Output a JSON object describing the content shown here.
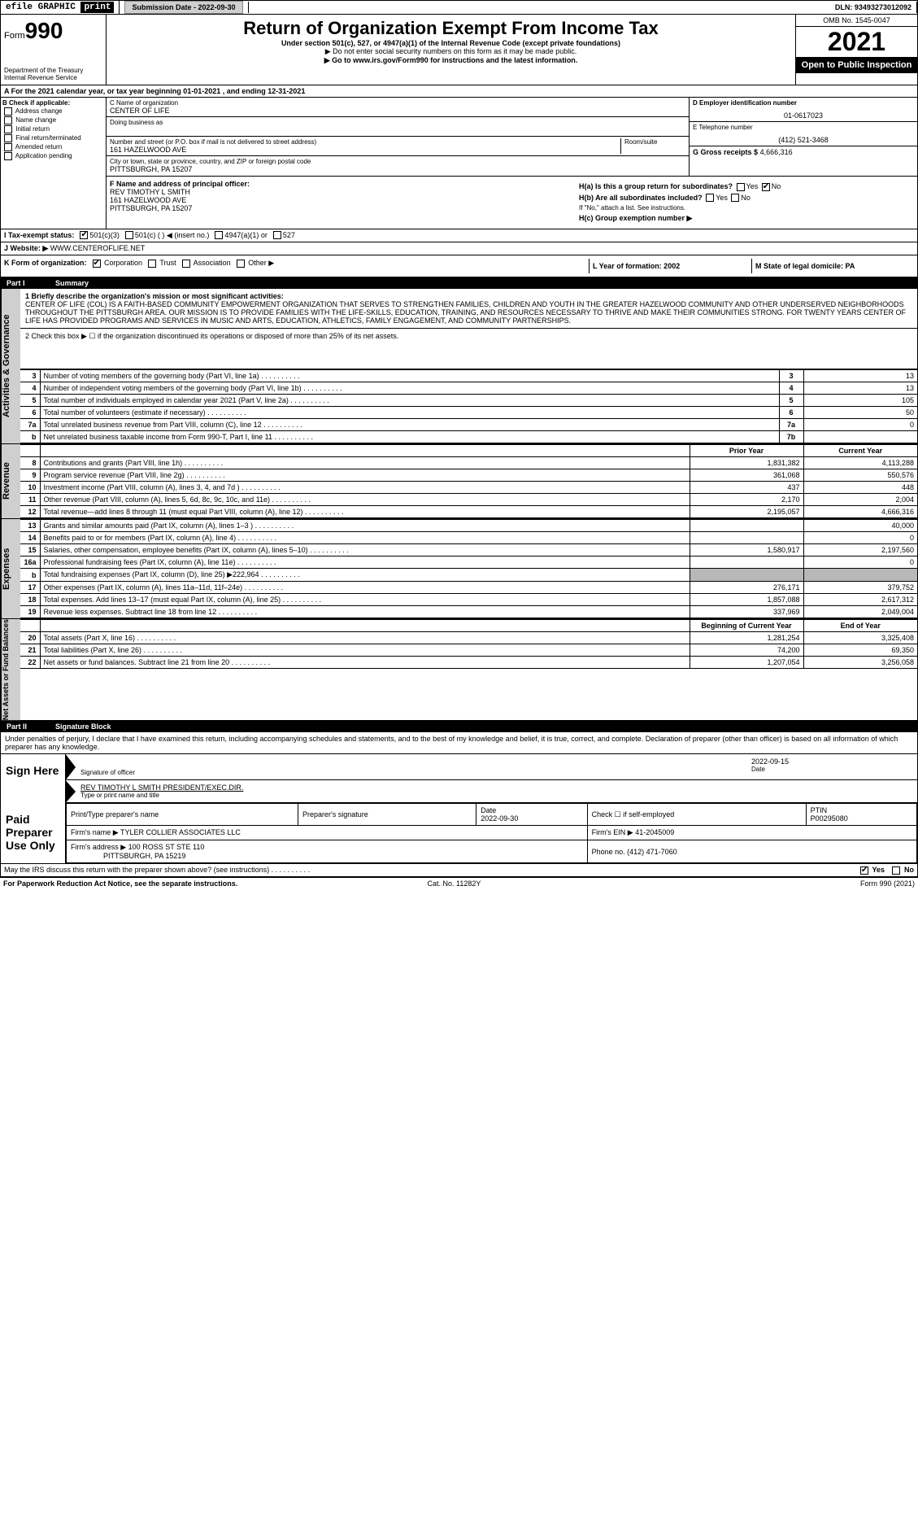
{
  "top": {
    "efile": "efile GRAPHIC",
    "print": "print",
    "sub_label": "Submission Date - 2022-09-30",
    "dln": "DLN: 93493273012092"
  },
  "header": {
    "form": "Form",
    "num": "990",
    "dept": "Department of the Treasury",
    "irs": "Internal Revenue Service",
    "title": "Return of Organization Exempt From Income Tax",
    "sub": "Under section 501(c), 527, or 4947(a)(1) of the Internal Revenue Code (except private foundations)",
    "sub2": "▶ Do not enter social security numbers on this form as it may be made public.",
    "go": "▶ Go to www.irs.gov/Form990 for instructions and the latest information.",
    "omb": "OMB No. 1545-0047",
    "year": "2021",
    "open": "Open to Public Inspection"
  },
  "a": {
    "text": "A For the 2021 calendar year, or tax year beginning 01-01-2021   , and ending 12-31-2021"
  },
  "b": {
    "title": "B Check if applicable:",
    "items": [
      "Address change",
      "Name change",
      "Initial return",
      "Final return/terminated",
      "Amended return",
      "Application pending"
    ]
  },
  "c": {
    "name_label": "C Name of organization",
    "name": "CENTER OF LIFE",
    "dba_label": "Doing business as",
    "dba": "",
    "addr_label": "Number and street (or P.O. box if mail is not delivered to street address)",
    "room_label": "Room/suite",
    "addr": "161 HAZELWOOD AVE",
    "city_label": "City or town, state or province, country, and ZIP or foreign postal code",
    "city": "PITTSBURGH, PA  15207"
  },
  "d": {
    "ein_label": "D Employer identification number",
    "ein": "01-0617023",
    "tel_label": "E Telephone number",
    "tel": "(412) 521-3468",
    "gross_label": "G Gross receipts $",
    "gross": "4,666,316"
  },
  "f": {
    "label": "F  Name and address of principal officer:",
    "name": "REV TIMOTHY L SMITH",
    "addr1": "161 HAZELWOOD AVE",
    "addr2": "PITTSBURGH, PA  15207"
  },
  "h": {
    "a": "H(a)  Is this a group return for subordinates?",
    "b": "H(b)  Are all subordinates included?",
    "b2": "If \"No,\" attach a list. See instructions.",
    "c": "H(c)  Group exemption number ▶",
    "yes": "Yes",
    "no": "No"
  },
  "i": {
    "label": "I   Tax-exempt status:",
    "opts": [
      "501(c)(3)",
      "501(c) (  ) ◀ (insert no.)",
      "4947(a)(1) or",
      "527"
    ]
  },
  "j": {
    "label": "J   Website: ▶",
    "val": "WWW.CENTEROFLIFE.NET"
  },
  "k": {
    "label": "K Form of organization:",
    "opts": [
      "Corporation",
      "Trust",
      "Association",
      "Other ▶"
    ],
    "l": "L Year of formation: 2002",
    "m": "M State of legal domicile: PA"
  },
  "part1": {
    "label": "Part I",
    "title": "Summary"
  },
  "summary": {
    "q1_label": "1   Briefly describe the organization's mission or most significant activities:",
    "q1": "CENTER OF LIFE (COL) IS A FAITH-BASED COMMUNITY EMPOWERMENT ORGANIZATION THAT SERVES TO STRENGTHEN FAMILIES, CHILDREN AND YOUTH IN THE GREATER HAZELWOOD COMMUNITY AND OTHER UNDERSERVED NEIGHBORHOODS THROUGHOUT THE PITTSBURGH AREA. OUR MISSION IS TO PROVIDE FAMILIES WITH THE LIFE-SKILLS, EDUCATION, TRAINING, AND RESOURCES NECESSARY TO THRIVE AND MAKE THEIR COMMUNITIES STRONG. FOR TWENTY YEARS CENTER OF LIFE HAS PROVIDED PROGRAMS AND SERVICES IN MUSIC AND ARTS, EDUCATION, ATHLETICS, FAMILY ENGAGEMENT, AND COMMUNITY PARTNERSHIPS.",
    "q2": "2   Check this box ▶ ☐ if the organization discontinued its operations or disposed of more than 25% of its net assets.",
    "rows_gov": [
      {
        "n": "3",
        "t": "Number of voting members of the governing body (Part VI, line 1a)",
        "box": "3",
        "v": "13"
      },
      {
        "n": "4",
        "t": "Number of independent voting members of the governing body (Part VI, line 1b)",
        "box": "4",
        "v": "13"
      },
      {
        "n": "5",
        "t": "Total number of individuals employed in calendar year 2021 (Part V, line 2a)",
        "box": "5",
        "v": "105"
      },
      {
        "n": "6",
        "t": "Total number of volunteers (estimate if necessary)",
        "box": "6",
        "v": "50"
      },
      {
        "n": "7a",
        "t": "Total unrelated business revenue from Part VIII, column (C), line 12",
        "box": "7a",
        "v": "0"
      },
      {
        "n": "b",
        "t": "Net unrelated business taxable income from Form 990-T, Part I, line 11",
        "box": "7b",
        "v": ""
      }
    ],
    "col_hdr": {
      "prior": "Prior Year",
      "current": "Current Year"
    },
    "rows_rev": [
      {
        "n": "8",
        "t": "Contributions and grants (Part VIII, line 1h)",
        "p": "1,831,382",
        "c": "4,113,288"
      },
      {
        "n": "9",
        "t": "Program service revenue (Part VIII, line 2g)",
        "p": "361,068",
        "c": "550,576"
      },
      {
        "n": "10",
        "t": "Investment income (Part VIII, column (A), lines 3, 4, and 7d )",
        "p": "437",
        "c": "448"
      },
      {
        "n": "11",
        "t": "Other revenue (Part VIII, column (A), lines 5, 6d, 8c, 9c, 10c, and 11e)",
        "p": "2,170",
        "c": "2,004"
      },
      {
        "n": "12",
        "t": "Total revenue—add lines 8 through 11 (must equal Part VIII, column (A), line 12)",
        "p": "2,195,057",
        "c": "4,666,316"
      }
    ],
    "rows_exp": [
      {
        "n": "13",
        "t": "Grants and similar amounts paid (Part IX, column (A), lines 1–3 )",
        "p": "",
        "c": "40,000"
      },
      {
        "n": "14",
        "t": "Benefits paid to or for members (Part IX, column (A), line 4)",
        "p": "",
        "c": "0"
      },
      {
        "n": "15",
        "t": "Salaries, other compensation, employee benefits (Part IX, column (A), lines 5–10)",
        "p": "1,580,917",
        "c": "2,197,560"
      },
      {
        "n": "16a",
        "t": "Professional fundraising fees (Part IX, column (A), line 11e)",
        "p": "",
        "c": "0"
      },
      {
        "n": "b",
        "t": "Total fundraising expenses (Part IX, column (D), line 25) ▶222,964",
        "p": "shade",
        "c": "shade"
      },
      {
        "n": "17",
        "t": "Other expenses (Part IX, column (A), lines 11a–11d, 11f–24e)",
        "p": "276,171",
        "c": "379,752"
      },
      {
        "n": "18",
        "t": "Total expenses. Add lines 13–17 (must equal Part IX, column (A), line 25)",
        "p": "1,857,088",
        "c": "2,617,312"
      },
      {
        "n": "19",
        "t": "Revenue less expenses. Subtract line 18 from line 12",
        "p": "337,969",
        "c": "2,049,004"
      }
    ],
    "col_hdr2": {
      "prior": "Beginning of Current Year",
      "current": "End of Year"
    },
    "rows_net": [
      {
        "n": "20",
        "t": "Total assets (Part X, line 16)",
        "p": "1,281,254",
        "c": "3,325,408"
      },
      {
        "n": "21",
        "t": "Total liabilities (Part X, line 26)",
        "p": "74,200",
        "c": "69,350"
      },
      {
        "n": "22",
        "t": "Net assets or fund balances. Subtract line 21 from line 20",
        "p": "1,207,054",
        "c": "3,256,058"
      }
    ],
    "side_gov": "Activities & Governance",
    "side_rev": "Revenue",
    "side_exp": "Expenses",
    "side_net": "Net Assets or Fund Balances"
  },
  "part2": {
    "label": "Part II",
    "title": "Signature Block"
  },
  "penalties": "Under penalties of perjury, I declare that I have examined this return, including accompanying schedules and statements, and to the best of my knowledge and belief, it is true, correct, and complete. Declaration of preparer (other than officer) is based on all information of which preparer has any knowledge.",
  "sign": {
    "here": "Sign Here",
    "sig_label": "Signature of officer",
    "date_label": "Date",
    "date": "2022-09-15",
    "name": "REV TIMOTHY L SMITH  PRESIDENT/EXEC.DIR.",
    "name_label": "Type or print name and title"
  },
  "paid": {
    "label": "Paid Preparer Use Only",
    "h1": "Print/Type preparer's name",
    "h2": "Preparer's signature",
    "h3": "Date",
    "h4": "Check ☐ if self-employed",
    "h5": "PTIN",
    "date": "2022-09-30",
    "ptin": "P00295080",
    "firm_label": "Firm's name    ▶",
    "firm": "TYLER COLLIER ASSOCIATES LLC",
    "ein_label": "Firm's EIN ▶",
    "ein": "41-2045009",
    "addr_label": "Firm's address ▶",
    "addr1": "100 ROSS ST STE 110",
    "addr2": "PITTSBURGH, PA  15219",
    "phone_label": "Phone no.",
    "phone": "(412) 471-7060"
  },
  "discuss": {
    "q": "May the IRS discuss this return with the preparer shown above? (see instructions)",
    "yes": "Yes",
    "no": "No"
  },
  "footer": {
    "l": "For Paperwork Reduction Act Notice, see the separate instructions.",
    "m": "Cat. No. 11282Y",
    "r": "Form 990 (2021)"
  }
}
